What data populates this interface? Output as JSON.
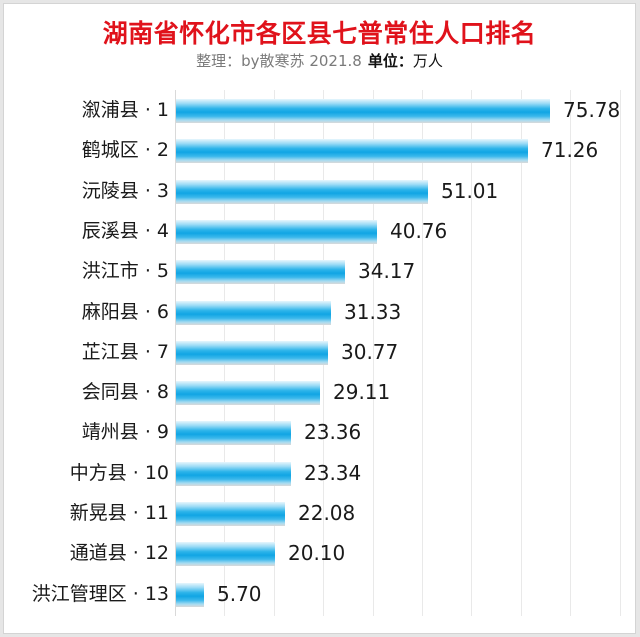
{
  "header": {
    "title": "湖南省怀化市各区县七普常住人口排名",
    "subtitle_credit": "整理：by散寒苏 2021.8",
    "unit_label": "单位：",
    "unit_value": "万人"
  },
  "colors": {
    "title": "#e0121b",
    "bar": "#11a5e4",
    "gridline": "#e9e9e9"
  },
  "chart_data": {
    "type": "bar",
    "orientation": "horizontal",
    "title": "湖南省怀化市各区县七普常住人口排名",
    "subtitle": "整理：by散寒苏 2021.8 单位：万人",
    "xlabel": "",
    "ylabel": "",
    "xlim": [
      0,
      90
    ],
    "grid": true,
    "grid_step": 10,
    "legend": "none",
    "categories": [
      "溆浦县 · 1",
      "鹤城区 · 2",
      "沅陵县 · 3",
      "辰溪县 · 4",
      "洪江市 · 5",
      "麻阳县 · 6",
      "芷江县 · 7",
      "会同县 · 8",
      "靖州县 · 9",
      "中方县 · 10",
      "新晃县 · 11",
      "通道县 · 12",
      "洪江管理区 · 13"
    ],
    "values": [
      75.78,
      71.26,
      51.01,
      40.76,
      34.17,
      31.33,
      30.77,
      29.11,
      23.36,
      23.34,
      22.08,
      20.1,
      5.7
    ],
    "value_labels": [
      "75.78",
      "71.26",
      "51.01",
      "40.76",
      "34.17",
      "31.33",
      "30.77",
      "29.11",
      "23.36",
      "23.34",
      "22.08",
      "20.10",
      "5.70"
    ],
    "unit": "万人"
  }
}
